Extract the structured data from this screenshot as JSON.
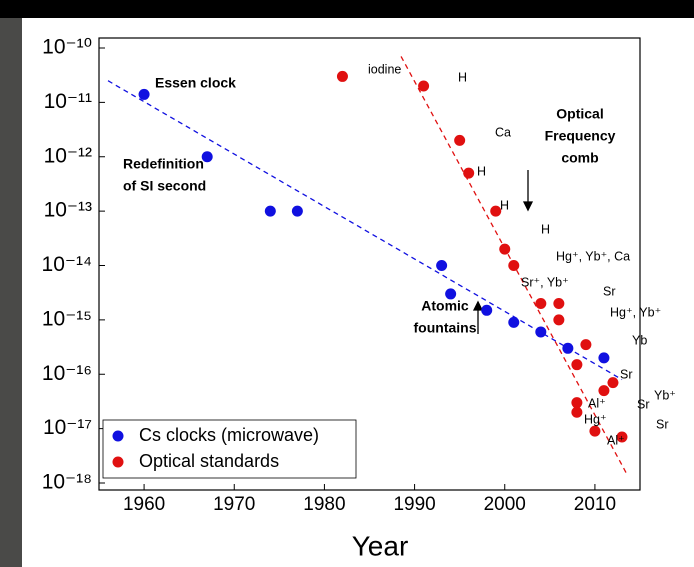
{
  "chart_data": {
    "type": "scatter",
    "x_label": "Year",
    "log_y": true,
    "xlim": [
      1955,
      2015
    ],
    "xticks": [
      1960,
      1970,
      1980,
      1990,
      2000,
      2010
    ],
    "ylim": [
      1e-18,
      1e-10
    ],
    "yticks": [
      {
        "value": 1e-10,
        "label": "10⁻¹⁰"
      },
      {
        "value": 1e-11,
        "label": "10⁻¹¹"
      },
      {
        "value": 1e-12,
        "label": "10⁻¹²"
      },
      {
        "value": 1e-13,
        "label": "10⁻¹³"
      },
      {
        "value": 1e-14,
        "label": "10⁻¹⁴"
      },
      {
        "value": 1e-15,
        "label": "10⁻¹⁵"
      },
      {
        "value": 1e-16,
        "label": "10⁻¹⁶"
      },
      {
        "value": 1e-17,
        "label": "10⁻¹⁷"
      },
      {
        "value": 1e-18,
        "label": "10⁻¹⁸"
      }
    ],
    "legend_position": "lower left",
    "series": [
      {
        "name": "Cs clocks (microwave)",
        "color": "#1010e0",
        "x": [
          1960,
          1967,
          1974,
          1977,
          1993,
          1994,
          1998,
          2001,
          2004,
          2007,
          2011
        ],
        "values": [
          1.4e-11,
          1e-12,
          1e-13,
          1e-13,
          1e-14,
          3e-15,
          1.5e-15,
          9e-16,
          6e-16,
          3e-16,
          2e-16
        ],
        "trend": {
          "x": [
            1956,
            2013
          ],
          "values": [
            2.5e-11,
            8e-17
          ]
        }
      },
      {
        "name": "Optical standards",
        "color": "#e01010",
        "x": [
          1982,
          1991,
          1995,
          1996,
          1999,
          2000,
          2001,
          2004,
          2006,
          2006,
          2009,
          2008,
          2011,
          2012,
          2008,
          2008,
          2010,
          2013
        ],
        "values": [
          3e-11,
          2e-11,
          2e-12,
          5e-13,
          1e-13,
          2e-14,
          1e-14,
          2e-15,
          2e-15,
          1e-15,
          3.5e-16,
          1.5e-16,
          5e-17,
          7e-17,
          3e-17,
          2e-17,
          9e-18,
          7e-18
        ],
        "trend": {
          "x": [
            1988.5,
            2013.5
          ],
          "values": [
            7e-11,
            1.5e-18
          ]
        }
      }
    ],
    "annotations": [
      "Essen clock",
      "iodine",
      "H",
      "Optical",
      "Frequency",
      "comb",
      "Redefinition",
      "of SI second",
      "Ca",
      "H",
      "H",
      "H",
      "Hg⁺, Yb⁺, Ca",
      "Sr⁺, Yb⁺",
      "Sr",
      "Hg⁺, Yb⁺",
      "Atomic",
      "fountains",
      "Yb",
      "Sr",
      "Yb⁺",
      "Sr",
      "Al⁺",
      "Hg⁺",
      "Al⁺",
      "Sr"
    ]
  }
}
